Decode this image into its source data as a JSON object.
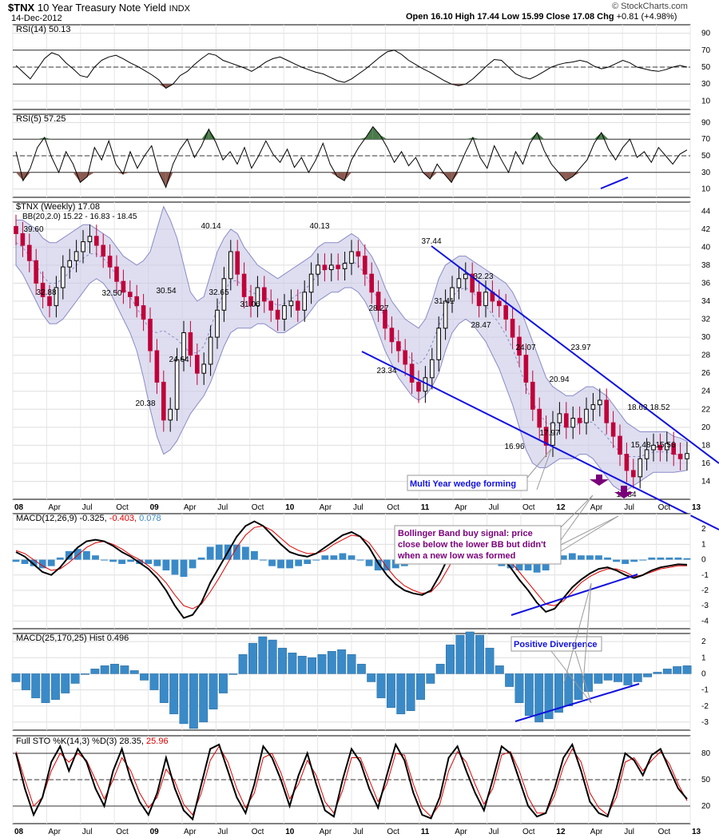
{
  "header": {
    "symbol": "$TNX",
    "name": "10 Year Treasury Note Yield",
    "exchange": "INDX",
    "date": "14-Dec-2012",
    "open_label": "Open",
    "open": "16.10",
    "high_label": "High",
    "high": "17.44",
    "low_label": "Low",
    "low": "15.99",
    "close_label": "Close",
    "close": "17.08",
    "chg_label": "Chg",
    "chg": "+0.81 (+4.98%)",
    "watermark": "© StockCharts.com"
  },
  "colors": {
    "up": "#000000",
    "down": "#c0003a",
    "bb_fill": "#c8c8e6",
    "bb_line": "#8a8ac8",
    "trend": "#1010e0",
    "hist": "#3a8ac8",
    "signal": "#e00000",
    "rsi_green": "#4a7a4a",
    "rsi_brown": "#8a5a50",
    "note": "#7a007a"
  },
  "chart_data": [
    {
      "type": "line",
      "panel": "RSI(14)",
      "label": "RSI(14) 50.13",
      "ylim": [
        0,
        100
      ],
      "ticks": [
        90,
        70,
        50,
        30,
        10
      ],
      "ref_lines": [
        70,
        50,
        30
      ],
      "series": [
        {
          "values": [
            52,
            44,
            36,
            48,
            60,
            67,
            64,
            55,
            48,
            40,
            38,
            50,
            58,
            62,
            64,
            60,
            55,
            51,
            46,
            41,
            35,
            25,
            30,
            40,
            45,
            53,
            60,
            66,
            64,
            58,
            55,
            52,
            49,
            45,
            50,
            56,
            60,
            62,
            58,
            54,
            50,
            47,
            44,
            42,
            38,
            34,
            32,
            36,
            42,
            48,
            55,
            62,
            68,
            70,
            65,
            58,
            53,
            48,
            44,
            39,
            34,
            30,
            28,
            30,
            36,
            44,
            52,
            59,
            58,
            50,
            42,
            38,
            36,
            40,
            45,
            50,
            53,
            55,
            56,
            58,
            56,
            51,
            48,
            50,
            54,
            58,
            55,
            50,
            48,
            46,
            45,
            47,
            50,
            52,
            50
          ]
        }
      ]
    },
    {
      "type": "line",
      "panel": "RSI(5)",
      "label": "RSI(5) 57.25",
      "ylim": [
        0,
        100
      ],
      "ticks": [
        90,
        70,
        50,
        30,
        10
      ],
      "ref_lines": [
        70,
        50,
        30
      ],
      "series": [
        {
          "values": [
            55,
            20,
            35,
            60,
            72,
            48,
            30,
            55,
            40,
            18,
            25,
            60,
            45,
            68,
            40,
            28,
            55,
            35,
            50,
            62,
            30,
            12,
            40,
            58,
            70,
            48,
            62,
            82,
            66,
            45,
            55,
            40,
            60,
            35,
            50,
            68,
            52,
            42,
            58,
            36,
            48,
            30,
            45,
            65,
            40,
            25,
            20,
            45,
            60,
            72,
            85,
            75,
            60,
            42,
            55,
            38,
            48,
            30,
            22,
            40,
            28,
            18,
            35,
            55,
            72,
            48,
            35,
            62,
            45,
            30,
            55,
            40,
            65,
            78,
            56,
            40,
            30,
            20,
            25,
            35,
            45,
            65,
            78,
            58,
            45,
            60,
            70,
            48,
            55,
            42,
            60,
            50,
            40,
            52,
            57
          ]
        }
      ]
    },
    {
      "type": "candlestick",
      "panel": "price",
      "label": "$TNX (Weekly) 17.08",
      "bb_label": "BB(20,2.0) 15.22 - 16.83 - 18.45",
      "ylim": [
        12,
        45
      ],
      "ticks": [
        44,
        42,
        40,
        38,
        36,
        34,
        32,
        30,
        28,
        26,
        24,
        22,
        20,
        18,
        16,
        14
      ],
      "x_ticks": [
        "08",
        "Apr",
        "Jul",
        "Oct",
        "09",
        "Apr",
        "Jul",
        "Oct",
        "10",
        "Apr",
        "Jul",
        "Oct",
        "11",
        "Apr",
        "Jul",
        "Oct",
        "12",
        "Apr",
        "Jul",
        "Oct",
        "13"
      ],
      "closes": [
        41.5,
        40.2,
        38.5,
        36.0,
        34.5,
        33.5,
        35.5,
        37.8,
        38.5,
        39.5,
        40.6,
        41.2,
        40.2,
        39.0,
        37.8,
        36.2,
        35.0,
        34.5,
        33.5,
        32.0,
        28.5,
        25.0,
        20.8,
        22.0,
        27.5,
        30.5,
        28.0,
        26.0,
        27.0,
        30.0,
        33.0,
        36.5,
        39.5,
        37.0,
        34.5,
        33.5,
        35.5,
        34.0,
        33.0,
        32.0,
        33.5,
        34.0,
        33.0,
        35.0,
        37.0,
        38.0,
        37.5,
        38.0,
        37.6,
        38.2,
        39.5,
        39.0,
        37.0,
        35.0,
        33.0,
        31.0,
        29.5,
        28.5,
        27.0,
        25.0,
        24.0,
        25.5,
        27.5,
        31.0,
        34.0,
        35.5,
        36.5,
        37.0,
        35.0,
        33.5,
        35.0,
        34.0,
        33.5,
        32.0,
        30.0,
        28.0,
        25.0,
        22.0,
        20.0,
        18.0,
        20.5,
        21.5,
        20.0,
        21.0,
        20.5,
        22.0,
        22.5,
        23.0,
        20.5,
        19.0,
        17.0,
        15.2,
        14.5,
        16.5,
        17.5,
        18.0,
        17.5,
        18.2,
        17.0,
        16.5,
        17.08
      ],
      "bb_upper": [
        43,
        43,
        42.5,
        42,
        41,
        40.5,
        40.5,
        41,
        41.5,
        42,
        42.5,
        42.5,
        42,
        41.5,
        41,
        40,
        39,
        38.5,
        38,
        38.5,
        39.5,
        42,
        44.5,
        43,
        41,
        38,
        35,
        34,
        34.5,
        37,
        39.5,
        41,
        42,
        41.5,
        40,
        39,
        38,
        37.5,
        37,
        36.5,
        37,
        37.5,
        38,
        38.5,
        39,
        40,
        40.5,
        40.5,
        40.5,
        41,
        41.5,
        41,
        40,
        39,
        37.5,
        35.5,
        34,
        33,
        32,
        31.5,
        31,
        32,
        34,
        36.5,
        38,
        38.5,
        39,
        39,
        38.5,
        38,
        37.5,
        37,
        36.5,
        36,
        35,
        33.5,
        31.5,
        29.5,
        27.5,
        25.5,
        24.5,
        24,
        23.5,
        23.5,
        24,
        24.5,
        24.5,
        24,
        23.5,
        22.5,
        21.5,
        20.5,
        20,
        19.5,
        19.5,
        19.5,
        19.5,
        19.5,
        19,
        18.8,
        18.45
      ],
      "bb_lower": [
        38,
        37,
        35.5,
        34,
        32.5,
        31.5,
        31.5,
        32,
        33,
        34,
        35,
        36,
        36.5,
        36,
        35,
        33.5,
        32,
        30.5,
        28.5,
        25.5,
        22,
        19,
        17,
        17.5,
        18.5,
        20,
        21.5,
        22.5,
        23.5,
        25,
        27,
        29,
        30.5,
        31,
        31,
        31,
        31.5,
        31.5,
        31,
        30.5,
        30.5,
        31,
        31.5,
        32,
        33,
        34,
        34.5,
        35,
        35,
        35.5,
        35.5,
        35,
        34,
        32.5,
        30.5,
        28.5,
        27,
        25.5,
        24.5,
        23.5,
        23,
        23.5,
        24.5,
        26,
        28.5,
        30.5,
        31.5,
        32,
        31.5,
        30.5,
        29.5,
        28,
        26.5,
        24.5,
        22.5,
        20,
        17.5,
        16,
        15.5,
        15.5,
        16,
        16.5,
        16.5,
        16.5,
        17,
        17,
        16.5,
        15.5,
        14.5,
        13.5,
        13,
        13,
        13.5,
        14,
        14.5,
        15,
        15,
        15,
        15,
        15.1,
        15.22
      ],
      "annotations": [
        "39.60",
        "32.88",
        "32.50",
        "40.14",
        "30.54",
        "24.64",
        "20.38",
        "32.65",
        "31.06",
        "40.13",
        "28.27",
        "23.34",
        "37.44",
        "31.41",
        "32.23",
        "28.47",
        "24.07",
        "16.96",
        "17.97",
        "20.94",
        "23.97",
        "18.63",
        "18.52",
        "15.48",
        "15.56",
        "13.84"
      ],
      "labels": {
        "wedge": "Multi Year wedge forming",
        "bollinger_line1": "Bollinger Band buy signal: price",
        "bollinger_line2": "close below the lower BB but didn't",
        "bollinger_line3": "when a new low was formed"
      }
    },
    {
      "type": "line",
      "panel": "MACD(12,26,9)",
      "label_prefix": "MACD(12,26,9)",
      "label_macd": "-0.325",
      "label_signal": "-0.403",
      "label_hist": "0.078",
      "ylim": [
        -4.5,
        3
      ],
      "ticks": [
        2,
        1,
        0,
        -1,
        -2,
        -3,
        -4
      ],
      "series": [
        {
          "name": "MACD",
          "values": [
            0.5,
            0.2,
            -0.3,
            -0.8,
            -1,
            -0.5,
            0.2,
            0.8,
            1.2,
            1.3,
            1.2,
            0.9,
            0.5,
            0.2,
            -0.2,
            -0.6,
            -1.2,
            -2,
            -3,
            -3.8,
            -3.6,
            -2.8,
            -1.5,
            -0.5,
            0.5,
            1.5,
            2.2,
            2.5,
            2.2,
            1.6,
            1,
            0.5,
            0.3,
            0.2,
            0.4,
            0.8,
            1.2,
            1.6,
            1.8,
            1.5,
            0.8,
            -0.2,
            -1,
            -1.6,
            -2,
            -2.2,
            -2.3,
            -2,
            -1,
            0.2,
            1.2,
            1.6,
            1.5,
            1.2,
            0.8,
            0.2,
            -0.5,
            -1.3,
            -2,
            -2.8,
            -3.4,
            -3.2,
            -2.5,
            -1.8,
            -1.3,
            -0.9,
            -0.6,
            -0.5,
            -0.7,
            -1,
            -1.2,
            -1,
            -0.7,
            -0.5,
            -0.4,
            -0.3,
            -0.33
          ]
        },
        {
          "name": "Signal",
          "values": [
            0.6,
            0.4,
            0,
            -0.4,
            -0.7,
            -0.6,
            -0.2,
            0.3,
            0.8,
            1.1,
            1.2,
            1,
            0.7,
            0.3,
            0,
            -0.4,
            -0.9,
            -1.5,
            -2.3,
            -3,
            -3.2,
            -2.9,
            -2.1,
            -1.2,
            -0.2,
            0.8,
            1.6,
            2.1,
            2.2,
            1.9,
            1.4,
            0.9,
            0.6,
            0.4,
            0.4,
            0.6,
            1,
            1.3,
            1.6,
            1.5,
            1.1,
            0.3,
            -0.5,
            -1.2,
            -1.7,
            -2,
            -2.2,
            -2.1,
            -1.5,
            -0.5,
            0.6,
            1.2,
            1.4,
            1.3,
            1,
            0.5,
            -0.1,
            -0.8,
            -1.5,
            -2.2,
            -2.9,
            -3,
            -2.7,
            -2.1,
            -1.5,
            -1.1,
            -0.8,
            -0.6,
            -0.6,
            -0.8,
            -1.1,
            -1,
            -0.8,
            -0.6,
            -0.5,
            -0.4,
            -0.4
          ]
        }
      ],
      "labels": {
        "divergence": "Positive Divergence"
      }
    },
    {
      "type": "bar",
      "panel": "MACD(25,170,25) Hist",
      "label": "MACD(25,170,25) Hist 0.496",
      "ylim": [
        -3.5,
        2.5
      ],
      "ticks": [
        2,
        1,
        0,
        -1,
        -2,
        -3
      ],
      "values": [
        -0.5,
        -1,
        -1.5,
        -1.8,
        -1.6,
        -1.2,
        -0.6,
        0,
        0.3,
        0.5,
        0.6,
        0.5,
        0.2,
        -0.4,
        -1,
        -1.8,
        -2.5,
        -3.1,
        -3.4,
        -3,
        -2.2,
        -1.2,
        0,
        1.2,
        1.9,
        2.3,
        2.1,
        1.6,
        1.3,
        1.1,
        1,
        1.2,
        1.4,
        1.5,
        1.2,
        0.6,
        -0.5,
        -1.5,
        -2.1,
        -2.5,
        -2.3,
        -1.6,
        -0.6,
        0.6,
        1.8,
        2.4,
        2.6,
        2.4,
        1.6,
        0.5,
        -0.8,
        -1.8,
        -2.6,
        -3,
        -2.8,
        -2.4,
        -2,
        -1.6,
        -1.1,
        -0.6,
        -0.4,
        -0.5,
        -0.7,
        -0.5,
        -0.2,
        0.1,
        0.3,
        0.45,
        0.5
      ]
    },
    {
      "type": "line",
      "panel": "Full STO",
      "label_prefix": "Full STO %K(14,3) %D(3)",
      "label_k": "28.35",
      "label_d": "25.96",
      "ylim": [
        0,
        100
      ],
      "ticks": [
        80,
        50,
        20
      ],
      "ref_lines": [
        80,
        50,
        20
      ],
      "series": [
        {
          "name": "%K",
          "values": [
            80,
            40,
            10,
            30,
            70,
            88,
            60,
            85,
            70,
            40,
            20,
            60,
            85,
            50,
            25,
            10,
            35,
            75,
            40,
            15,
            5,
            45,
            85,
            90,
            60,
            30,
            12,
            45,
            88,
            75,
            50,
            20,
            55,
            80,
            45,
            15,
            8,
            50,
            85,
            70,
            40,
            18,
            55,
            90,
            72,
            35,
            10,
            6,
            30,
            75,
            88,
            60,
            35,
            15,
            50,
            88,
            80,
            50,
            20,
            8,
            12,
            40,
            75,
            90,
            60,
            25,
            12,
            8,
            40,
            80,
            72,
            55,
            78,
            85,
            62,
            40,
            28
          ]
        },
        {
          "name": "%D",
          "values": [
            82,
            50,
            20,
            30,
            60,
            80,
            70,
            80,
            72,
            50,
            28,
            50,
            75,
            60,
            35,
            18,
            30,
            62,
            48,
            22,
            10,
            35,
            72,
            88,
            70,
            40,
            18,
            35,
            75,
            80,
            58,
            28,
            45,
            72,
            55,
            25,
            12,
            38,
            75,
            75,
            50,
            25,
            45,
            80,
            78,
            45,
            18,
            8,
            22,
            60,
            82,
            70,
            45,
            22,
            40,
            78,
            82,
            60,
            30,
            12,
            12,
            32,
            65,
            85,
            70,
            35,
            18,
            10,
            30,
            70,
            75,
            60,
            72,
            82,
            68,
            45,
            26
          ]
        }
      ]
    }
  ]
}
